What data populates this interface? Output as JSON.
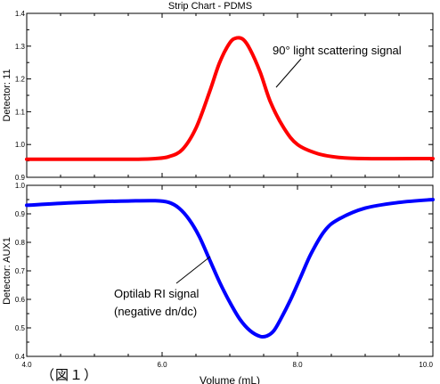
{
  "window": {
    "title": "Strip Chart - PDMS"
  },
  "figure_label": "（図１）",
  "chart_data": [
    {
      "type": "line",
      "title": "Strip Chart - PDMS",
      "xlabel": "",
      "ylabel": "Detector:  11",
      "xlim": [
        4.0,
        10.0
      ],
      "ylim": [
        0.9,
        1.4
      ],
      "yticks": [
        "0.9",
        "1.0",
        "1.1",
        "1.2",
        "1.3",
        "1.4"
      ],
      "grid": false,
      "annotation": "90° light scattering signal",
      "series": [
        {
          "color": "#ff0000",
          "x": [
            4.0,
            5.0,
            5.6,
            5.9,
            6.1,
            6.3,
            6.5,
            6.7,
            6.85,
            7.0,
            7.1,
            7.2,
            7.3,
            7.45,
            7.6,
            7.8,
            8.0,
            8.3,
            8.6,
            9.0,
            10.0
          ],
          "y": [
            0.955,
            0.955,
            0.955,
            0.957,
            0.963,
            0.985,
            1.05,
            1.16,
            1.25,
            1.31,
            1.325,
            1.32,
            1.29,
            1.22,
            1.13,
            1.05,
            1.0,
            0.972,
            0.961,
            0.957,
            0.957
          ]
        }
      ]
    },
    {
      "type": "line",
      "xlabel": "Volume (mL)",
      "ylabel": "Detector:  AUX1",
      "xlim": [
        4.0,
        10.0
      ],
      "ylim": [
        0.4,
        1.0
      ],
      "xticks": [
        "4.0",
        "6.0",
        "8.0",
        "10.0"
      ],
      "yticks": [
        "0.4",
        "0.5",
        "0.6",
        "0.7",
        "0.8",
        "0.9",
        "1.0"
      ],
      "grid": false,
      "annotation": [
        "Optilab RI signal",
        "(negative dn/dc)"
      ],
      "series": [
        {
          "color": "#0000ff",
          "x": [
            4.0,
            4.5,
            5.0,
            5.5,
            5.9,
            6.1,
            6.25,
            6.4,
            6.55,
            6.7,
            6.85,
            7.0,
            7.15,
            7.3,
            7.45,
            7.55,
            7.65,
            7.75,
            7.9,
            8.05,
            8.2,
            8.4,
            8.6,
            9.0,
            9.5,
            10.0
          ],
          "y": [
            0.93,
            0.937,
            0.942,
            0.945,
            0.946,
            0.94,
            0.92,
            0.88,
            0.82,
            0.74,
            0.66,
            0.59,
            0.53,
            0.49,
            0.47,
            0.472,
            0.49,
            0.53,
            0.6,
            0.68,
            0.76,
            0.84,
            0.88,
            0.92,
            0.94,
            0.95
          ]
        }
      ]
    }
  ]
}
